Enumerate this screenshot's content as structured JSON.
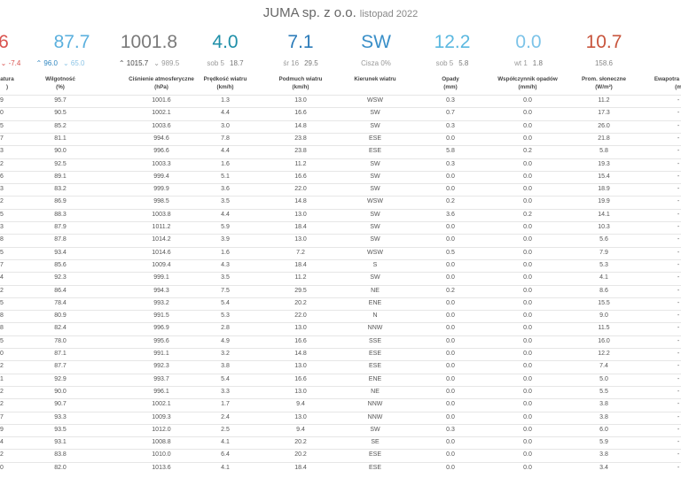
{
  "header": {
    "title": "JUMA sp. z o.o.",
    "subtitle": "listopad 2022"
  },
  "summary": [
    {
      "value": "6",
      "color": "#d9534f",
      "sub": [
        {
          "text": "⌄ -7.4",
          "color": "#d9534f"
        }
      ]
    },
    {
      "value": "87.7",
      "color": "#5bb0de",
      "sub": [
        {
          "text": "⌃ 96.0",
          "color": "#2f86c0"
        },
        {
          "text": "⌄ 65.0",
          "color": "#8cc4e6"
        }
      ]
    },
    {
      "value": "1001.8",
      "color": "#7a7a7a",
      "sub": [
        {
          "text": "⌃ 1015.7",
          "color": "#444444"
        },
        {
          "text": "⌄ 989.5",
          "color": "#999999"
        }
      ]
    },
    {
      "value": "4.0",
      "color": "#1f8fa8",
      "sub": [
        {
          "text": "sob 5",
          "color": "#999999"
        },
        {
          "text": "18.7",
          "color": "#777777"
        }
      ]
    },
    {
      "value": "7.1",
      "color": "#2b7bb9",
      "sub": [
        {
          "text": "śr 16",
          "color": "#999999"
        },
        {
          "text": "29.5",
          "color": "#777777"
        }
      ]
    },
    {
      "value": "SW",
      "color": "#3a8fc8",
      "sub": [
        {
          "text": "Cisza 0%",
          "color": "#999999"
        }
      ]
    },
    {
      "value": "12.2",
      "color": "#5bb8e0",
      "sub": [
        {
          "text": "sob 5",
          "color": "#999999"
        },
        {
          "text": "5.8",
          "color": "#777777"
        }
      ]
    },
    {
      "value": "0.0",
      "color": "#7cc3e8",
      "sub": [
        {
          "text": "wt 1",
          "color": "#999999"
        },
        {
          "text": "1.8",
          "color": "#777777"
        }
      ]
    },
    {
      "value": "10.7",
      "color": "#c8553d",
      "sub": [
        {
          "text": "158.6",
          "color": "#888888"
        }
      ]
    }
  ],
  "table": {
    "columns": [
      [
        "atura",
        ")"
      ],
      [
        "Wilgotność",
        "(%)"
      ],
      [
        "Ciśnienie atmosferyczne",
        "(hPa)"
      ],
      [
        "Prędkość wiatru",
        "(km/h)"
      ],
      [
        "Podmuch wiatru",
        "(km/h)"
      ],
      [
        "Kierunek wiatru"
      ],
      [
        "Opady",
        "(mm)"
      ],
      [
        "Współczynnik opadów",
        "(mm/h)"
      ],
      [
        "Prom. słoneczne",
        "(W/m²)"
      ],
      [
        "Ewapotra",
        "(m"
      ]
    ],
    "rows": [
      [
        "9",
        "95.7",
        "1001.6",
        "1.3",
        "13.0",
        "WSW",
        "0.3",
        "0.0",
        "11.2",
        "-"
      ],
      [
        "0",
        "90.5",
        "1002.1",
        "4.4",
        "16.6",
        "SW",
        "0.7",
        "0.0",
        "17.3",
        "-"
      ],
      [
        "5",
        "85.2",
        "1003.6",
        "3.0",
        "14.8",
        "SW",
        "0.3",
        "0.0",
        "26.0",
        "-"
      ],
      [
        "7",
        "81.1",
        "994.6",
        "7.8",
        "23.8",
        "ESE",
        "0.0",
        "0.0",
        "21.8",
        "-"
      ],
      [
        "3",
        "90.0",
        "996.6",
        "4.4",
        "23.8",
        "ESE",
        "5.8",
        "0.2",
        "5.8",
        "-"
      ],
      [
        "2",
        "92.5",
        "1003.3",
        "1.6",
        "11.2",
        "SW",
        "0.3",
        "0.0",
        "19.3",
        "-"
      ],
      [
        "6",
        "89.1",
        "999.4",
        "5.1",
        "16.6",
        "SW",
        "0.0",
        "0.0",
        "15.4",
        "-"
      ],
      [
        "3",
        "83.2",
        "999.9",
        "3.6",
        "22.0",
        "SW",
        "0.0",
        "0.0",
        "18.9",
        "-"
      ],
      [
        "2",
        "86.9",
        "998.5",
        "3.5",
        "14.8",
        "WSW",
        "0.2",
        "0.0",
        "19.9",
        "-"
      ],
      [
        "5",
        "88.3",
        "1003.8",
        "4.4",
        "13.0",
        "SW",
        "3.6",
        "0.2",
        "14.1",
        "-"
      ],
      [
        "3",
        "87.9",
        "1011.2",
        "5.9",
        "18.4",
        "SW",
        "0.0",
        "0.0",
        "10.3",
        "-"
      ],
      [
        "8",
        "87.8",
        "1014.2",
        "3.9",
        "13.0",
        "SW",
        "0.0",
        "0.0",
        "5.6",
        "-"
      ],
      [
        "5",
        "93.4",
        "1014.6",
        "1.6",
        "7.2",
        "WSW",
        "0.5",
        "0.0",
        "7.9",
        "-"
      ],
      [
        "7",
        "85.6",
        "1009.4",
        "4.3",
        "18.4",
        "S",
        "0.0",
        "0.0",
        "5.3",
        "-"
      ],
      [
        "4",
        "92.3",
        "999.1",
        "3.5",
        "11.2",
        "SW",
        "0.0",
        "0.0",
        "4.1",
        "-"
      ],
      [
        "2",
        "86.4",
        "994.3",
        "7.5",
        "29.5",
        "NE",
        "0.2",
        "0.0",
        "8.6",
        "-"
      ],
      [
        "5",
        "78.4",
        "993.2",
        "5.4",
        "20.2",
        "ENE",
        "0.0",
        "0.0",
        "15.5",
        "-"
      ],
      [
        "8",
        "80.9",
        "991.5",
        "5.3",
        "22.0",
        "N",
        "0.0",
        "0.0",
        "9.0",
        "-"
      ],
      [
        "8",
        "82.4",
        "996.9",
        "2.8",
        "13.0",
        "NNW",
        "0.0",
        "0.0",
        "11.5",
        "-"
      ],
      [
        "5",
        "78.0",
        "995.6",
        "4.9",
        "16.6",
        "SSE",
        "0.0",
        "0.0",
        "16.0",
        "-"
      ],
      [
        "0",
        "87.1",
        "991.1",
        "3.2",
        "14.8",
        "ESE",
        "0.0",
        "0.0",
        "12.2",
        "-"
      ],
      [
        "2",
        "87.7",
        "992.3",
        "3.8",
        "13.0",
        "ESE",
        "0.0",
        "0.0",
        "7.4",
        "-"
      ],
      [
        "1",
        "92.9",
        "993.7",
        "5.4",
        "16.6",
        "ENE",
        "0.0",
        "0.0",
        "5.0",
        "-"
      ],
      [
        "2",
        "90.0",
        "996.1",
        "3.3",
        "13.0",
        "NE",
        "0.0",
        "0.0",
        "5.5",
        "-"
      ],
      [
        "2",
        "90.7",
        "1002.1",
        "1.7",
        "9.4",
        "NNW",
        "0.0",
        "0.0",
        "3.8",
        "-"
      ],
      [
        "7",
        "93.3",
        "1009.3",
        "2.4",
        "13.0",
        "NNW",
        "0.0",
        "0.0",
        "3.8",
        "-"
      ],
      [
        "9",
        "93.5",
        "1012.0",
        "2.5",
        "9.4",
        "SW",
        "0.3",
        "0.0",
        "6.0",
        "-"
      ],
      [
        "4",
        "93.1",
        "1008.8",
        "4.1",
        "20.2",
        "SE",
        "0.0",
        "0.0",
        "5.9",
        "-"
      ],
      [
        "2",
        "83.8",
        "1010.0",
        "6.4",
        "20.2",
        "ESE",
        "0.0",
        "0.0",
        "3.8",
        "-"
      ],
      [
        "0",
        "82.0",
        "1013.6",
        "4.1",
        "18.4",
        "ESE",
        "0.0",
        "0.0",
        "3.4",
        "-"
      ]
    ]
  }
}
